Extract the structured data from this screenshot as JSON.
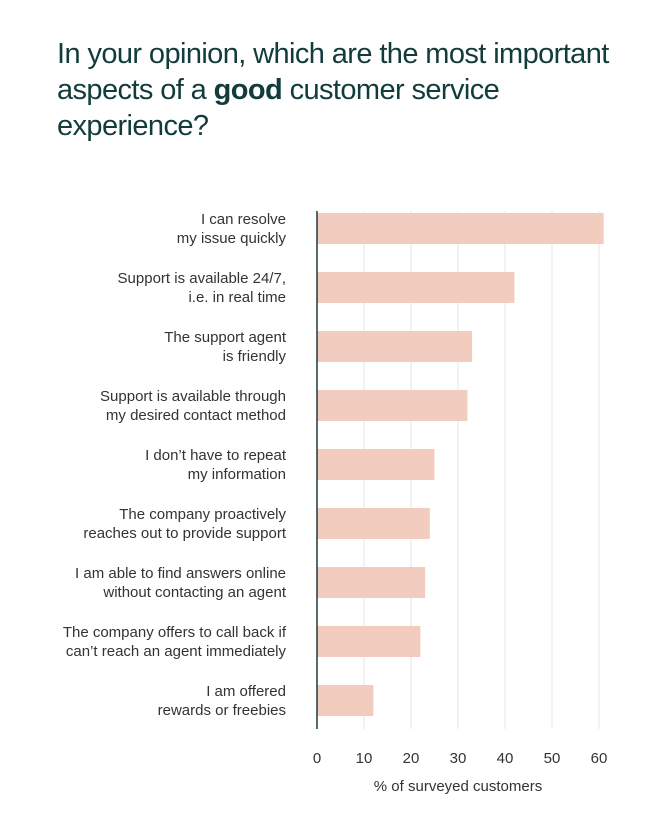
{
  "header": {
    "title_before": "In your opinion, which are the most important aspects of a",
    "title_bold": "good",
    "title_after": "customer service experience?"
  },
  "colors": {
    "bar": "#f2cdbf",
    "title": "#123c3c",
    "axis": "#1f3a3a",
    "grid": "#e6e6e6",
    "text": "#333333"
  },
  "chart_data": {
    "type": "bar",
    "orientation": "horizontal",
    "title": "In your opinion, which are the most important aspects of a good customer service experience?",
    "xlabel": "% of surveyed customers",
    "ylabel": "",
    "xlim": [
      0,
      60
    ],
    "xticks": [
      0,
      10,
      20,
      30,
      40,
      50,
      60
    ],
    "grid": true,
    "categories": [
      [
        "I can resolve",
        "my issue quickly"
      ],
      [
        "Support is available 24/7,",
        "i.e. in real time"
      ],
      [
        "The support agent",
        "is friendly"
      ],
      [
        "Support is available through",
        "my desired contact method"
      ],
      [
        "I don’t have to repeat",
        "my information"
      ],
      [
        "The company proactively",
        "reaches out to provide support"
      ],
      [
        "I am able to find answers online",
        "without contacting an agent"
      ],
      [
        "The company offers to call back if",
        "can’t reach an agent immediately"
      ],
      [
        "I am offered",
        "rewards or freebies"
      ]
    ],
    "values": [
      61,
      42,
      33,
      32,
      25,
      24,
      23,
      22,
      12
    ]
  }
}
